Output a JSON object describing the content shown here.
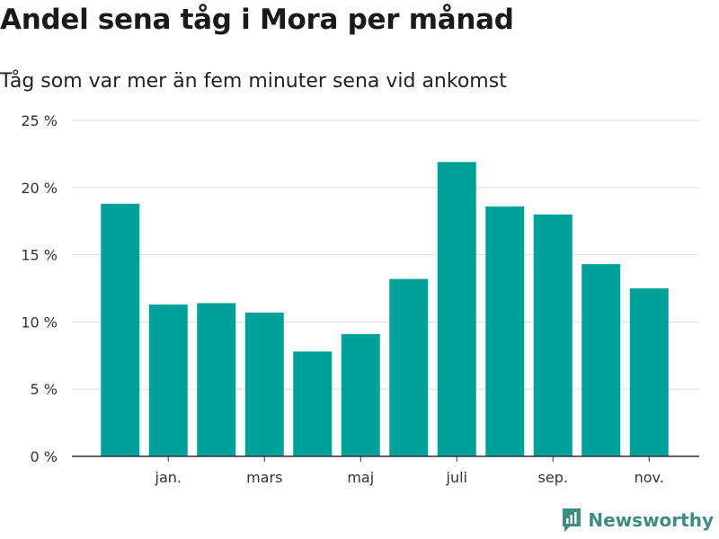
{
  "header": {
    "title": "Andel sena tåg i Mora per månad",
    "subtitle": "Tåg som var mer än fem minuter sena vid ankomst"
  },
  "brand": {
    "name": "Newsworthy",
    "color": "#3d8c86",
    "icon": "newsworthy-logo-icon"
  },
  "colors": {
    "bar": "#00a19a",
    "grid": "#dddddd",
    "axis": "#333333"
  },
  "chart_data": {
    "type": "bar",
    "title": "Andel sena tåg i Mora per månad",
    "subtitle": "Tåg som var mer än fem minuter sena vid ankomst",
    "xlabel": "",
    "ylabel": "",
    "ylim": [
      0,
      25
    ],
    "y_ticks": [
      0,
      5,
      10,
      15,
      20,
      25
    ],
    "y_tick_labels": [
      "0 %",
      "5 %",
      "10 %",
      "15 %",
      "20 %",
      "25 %"
    ],
    "x_tick_labels": [
      "jan.",
      "mars",
      "maj",
      "juli",
      "sep.",
      "nov."
    ],
    "x_tick_positions": [
      1,
      3,
      5,
      7,
      9,
      11
    ],
    "grid": true,
    "series": [
      {
        "name": "Andel sena tåg",
        "values": [
          18.8,
          11.3,
          11.4,
          10.7,
          7.8,
          9.1,
          13.2,
          21.9,
          18.6,
          18.0,
          14.3,
          12.5
        ]
      }
    ]
  }
}
